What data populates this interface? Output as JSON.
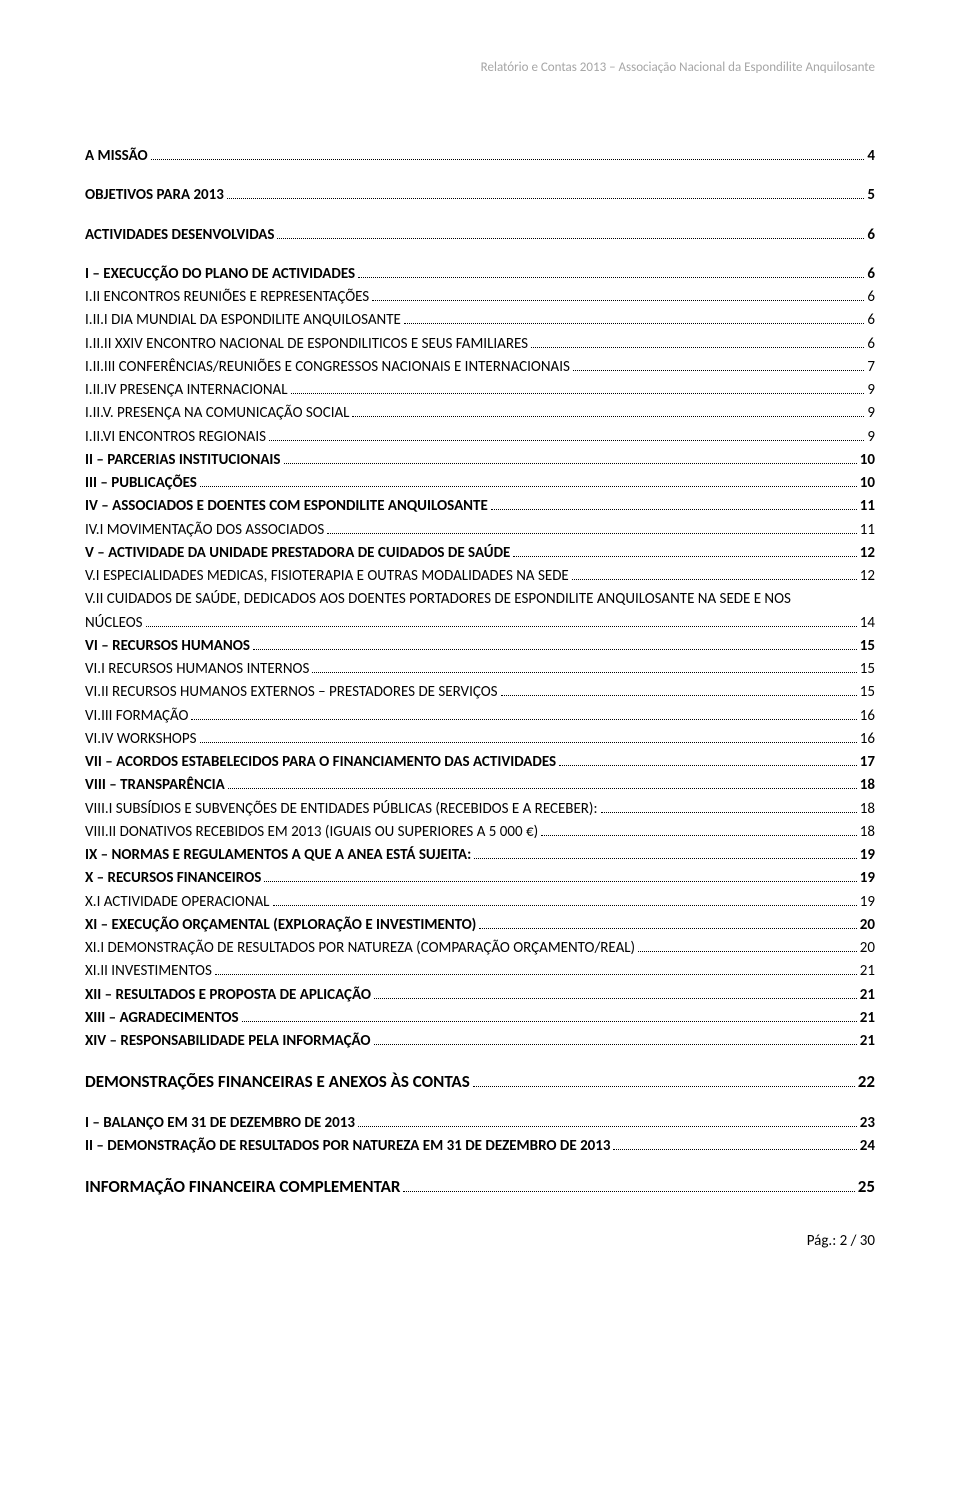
{
  "header": "Relatório e Contas 2013 – Associação Nacional da Espondilite Anquilosante",
  "footer": "Pág.: 2 / 30",
  "toc": [
    {
      "label": "A MISSÃO",
      "page": "4",
      "bold": true,
      "spacer_after": true
    },
    {
      "label": "OBJETIVOS PARA 2013",
      "page": "5",
      "bold": true,
      "spacer_after": true
    },
    {
      "label": "ACTIVIDADES DESENVOLVIDAS",
      "page": "6",
      "bold": true,
      "spacer_after": true
    },
    {
      "label": "I – EXECUCÇÃO DO PLANO DE ACTIVIDADES",
      "page": "6",
      "bold": true
    },
    {
      "label": "I.II ENCONTROS REUNIÕES E REPRESENTAÇÕES",
      "page": "6",
      "sc": true
    },
    {
      "label": "I.II.I DIA MUNDIAL DA ESPONDILITE ANQUILOSANTE",
      "page": "6",
      "sc": true
    },
    {
      "label": "I.II.II XXIV ENCONTRO NACIONAL DE ESPONDILITICOS E SEUS FAMILIARES",
      "page": "6",
      "sc": true
    },
    {
      "label": "I.II.III CONFERÊNCIAS/REUNIÕES E CONGRESSOS NACIONAIS E INTERNACIONAIS",
      "page": "7",
      "sc": true
    },
    {
      "label": "I.II.IV PRESENÇA INTERNACIONAL",
      "page": "9",
      "sc": true
    },
    {
      "label": "I.II.V. PRESENÇA NA COMUNICAÇÃO SOCIAL",
      "page": "9",
      "sc": true
    },
    {
      "label": "I.II.VI ENCONTROS REGIONAIS",
      "page": "9",
      "sc": true
    },
    {
      "label": "II – PARCERIAS INSTITUCIONAIS",
      "page": "10",
      "bold": true
    },
    {
      "label": "III – PUBLICAÇÕES",
      "page": "10",
      "bold": true
    },
    {
      "label": "IV – ASSOCIADOS E DOENTES COM ESPONDILITE ANQUILOSANTE",
      "page": "11",
      "bold": true
    },
    {
      "label": "IV.I MOVIMENTAÇÃO DOS ASSOCIADOS",
      "page": "11",
      "sc": true
    },
    {
      "label": "V – ACTIVIDADE DA UNIDADE PRESTADORA DE CUIDADOS DE SAÚDE",
      "page": "12",
      "bold": true
    },
    {
      "label": "V.I ESPECIALIDADES MEDICAS, FISIOTERAPIA E OUTRAS MODALIDADES NA SEDE",
      "page": "12",
      "sc": true
    },
    {
      "label": "V.II CUIDADOS DE SAÚDE, DEDICADOS AOS DOENTES PORTADORES DE ESPONDILITE ANQUILOSANTE NA SEDE E NOS NÚCLEOS",
      "page": "14",
      "sc": true,
      "multiline": true
    },
    {
      "label": "VI – RECURSOS HUMANOS",
      "page": "15",
      "bold": true
    },
    {
      "label": "VI.I RECURSOS HUMANOS INTERNOS",
      "page": "15",
      "sc": true
    },
    {
      "label": "VI.II RECURSOS HUMANOS EXTERNOS – PRESTADORES DE SERVIÇOS",
      "page": "15",
      "sc": true
    },
    {
      "label": "VI.III FORMAÇÃO",
      "page": "16",
      "sc": true
    },
    {
      "label": "VI.IV WORKSHOPS",
      "page": "16",
      "sc": true
    },
    {
      "label": "VII – ACORDOS ESTABELECIDOS PARA O FINANCIAMENTO DAS ACTIVIDADES",
      "page": "17",
      "bold": true
    },
    {
      "label": "VIII – TRANSPARÊNCIA",
      "page": "18",
      "bold": true
    },
    {
      "label": "VIII.I SUBSÍDIOS E SUBVENÇÕES DE ENTIDADES PÚBLICAS (RECEBIDOS E A RECEBER):",
      "page": "18",
      "sc": true
    },
    {
      "label": "VIII.II DONATIVOS RECEBIDOS EM 2013 (IGUAIS OU SUPERIORES A 5 000 €)",
      "page": "18",
      "sc": true
    },
    {
      "label": "IX – NORMAS E REGULAMENTOS A QUE A ANEA ESTÁ SUJEITA:",
      "page": "19",
      "bold": true
    },
    {
      "label": "X – RECURSOS FINANCEIROS",
      "page": "19",
      "bold": true
    },
    {
      "label": "X.I ACTIVIDADE OPERACIONAL",
      "page": "19",
      "sc": true
    },
    {
      "label": "XI – EXECUÇÃO ORÇAMENTAL (EXPLORAÇÃO E INVESTIMENTO)",
      "page": "20",
      "bold": true
    },
    {
      "label": "XI.I DEMONSTRAÇÃO DE RESULTADOS POR NATUREZA (COMPARAÇÃO ORÇAMENTO/REAL)",
      "page": "20",
      "sc": true
    },
    {
      "label": "XI.II INVESTIMENTOS",
      "page": "21",
      "sc": true
    },
    {
      "label": "XII – RESULTADOS E PROPOSTA DE APLICAÇÃO",
      "page": "21",
      "bold": true
    },
    {
      "label": "XIII – AGRADECIMENTOS",
      "page": "21",
      "bold": true
    },
    {
      "label": "XIV –  RESPONSABILIDADE PELA INFORMAÇÃO",
      "page": "21",
      "bold": true,
      "spacer_after": true
    },
    {
      "label": "DEMONSTRAÇÕES FINANCEIRAS E ANEXOS ÀS CONTAS",
      "page": "22",
      "bold": true,
      "big": true,
      "spacer_after": true
    },
    {
      "label": "I – BALANÇO EM 31 DE DEZEMBRO DE 2013",
      "page": "23",
      "bold": true
    },
    {
      "label": "II – DEMONSTRAÇÃO DE RESULTADOS POR NATUREZA EM 31 DE DEZEMBRO DE 2013",
      "page": "24",
      "bold": true,
      "spacer_after": true
    },
    {
      "label": "INFORMAÇÃO FINANCEIRA COMPLEMENTAR",
      "page": "25",
      "bold": true,
      "big": true
    }
  ]
}
